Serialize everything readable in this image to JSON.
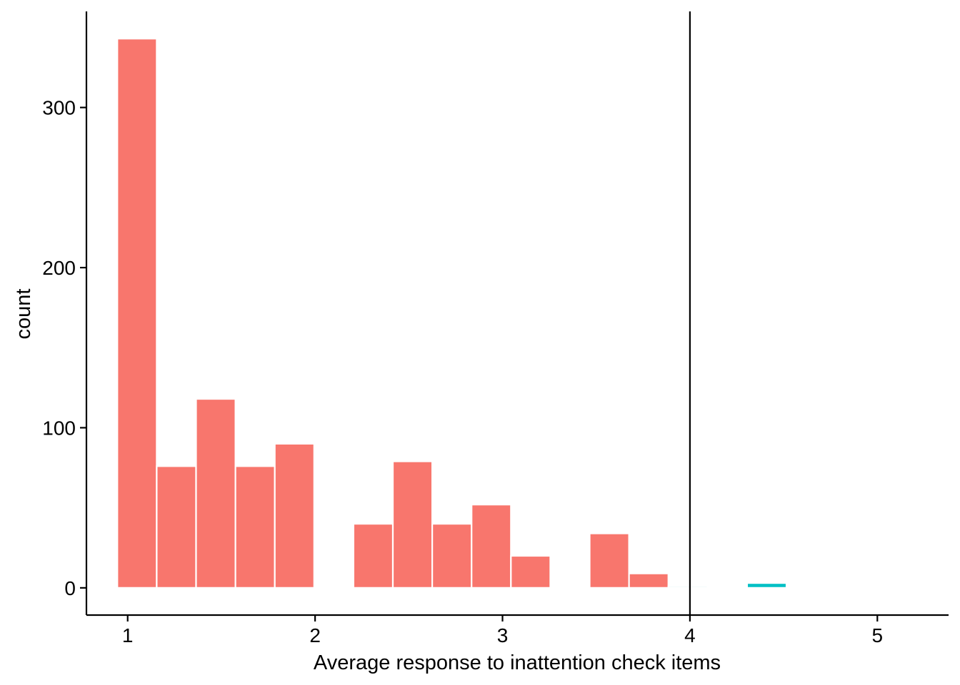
{
  "chart_data": {
    "type": "bar",
    "xlabel": "Average response to inattention check items",
    "ylabel": "count",
    "xlim": [
      0.78,
      5.38
    ],
    "ylim": [
      -17,
      360
    ],
    "x_ticks": [
      "1",
      "2",
      "3",
      "4",
      "5"
    ],
    "y_ticks": [
      "0",
      "100",
      "200",
      "300"
    ],
    "vline_x": 4,
    "bin_width": 0.21,
    "grid": false,
    "colors": {
      "below": "#F8766D",
      "above": "#00BFC4",
      "axis": "#000000",
      "edge": "#ffffff"
    },
    "bars": [
      {
        "x": 1.05,
        "count": 343,
        "group": "below"
      },
      {
        "x": 1.26,
        "count": 76,
        "group": "below"
      },
      {
        "x": 1.47,
        "count": 118,
        "group": "below"
      },
      {
        "x": 1.68,
        "count": 76,
        "group": "below"
      },
      {
        "x": 1.89,
        "count": 90,
        "group": "below"
      },
      {
        "x": 2.31,
        "count": 40,
        "group": "below"
      },
      {
        "x": 2.52,
        "count": 79,
        "group": "below"
      },
      {
        "x": 2.73,
        "count": 40,
        "group": "below"
      },
      {
        "x": 2.94,
        "count": 52,
        "group": "below"
      },
      {
        "x": 3.15,
        "count": 20,
        "group": "below"
      },
      {
        "x": 3.57,
        "count": 34,
        "group": "below"
      },
      {
        "x": 3.78,
        "count": 9,
        "group": "below"
      },
      {
        "x": 3.99,
        "count": 1,
        "group": "above"
      },
      {
        "x": 4.41,
        "count": 3,
        "group": "above"
      }
    ]
  }
}
